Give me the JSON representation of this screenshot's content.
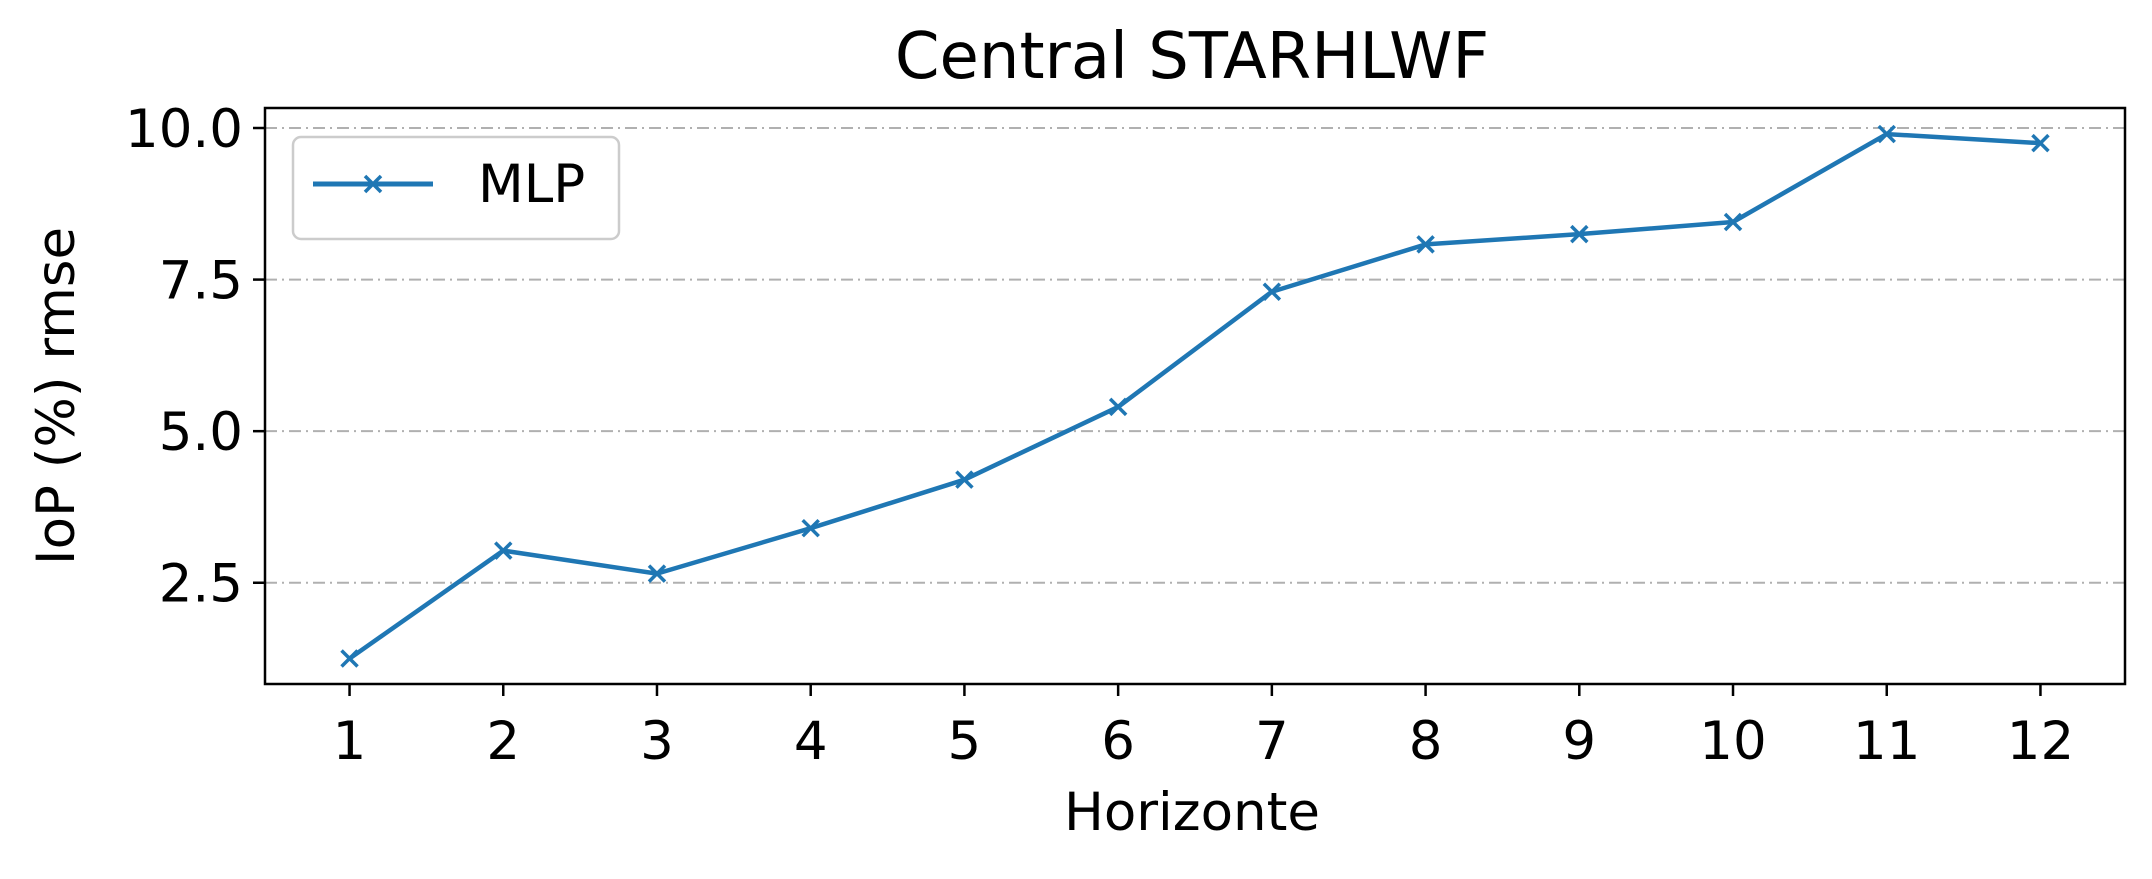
{
  "chart_data": {
    "type": "line",
    "title": "Central STARHLWF",
    "xlabel": "Horizonte",
    "ylabel": "IoP (%) rmse",
    "x": [
      1,
      2,
      3,
      4,
      5,
      6,
      7,
      8,
      9,
      10,
      11,
      12
    ],
    "x_tick_labels": [
      "1",
      "2",
      "3",
      "4",
      "5",
      "6",
      "7",
      "8",
      "9",
      "10",
      "11",
      "12"
    ],
    "xlim": [
      0.45,
      12.55
    ],
    "ylim": [
      0.83,
      10.33
    ],
    "y_ticks": [
      2.5,
      5.0,
      7.5,
      10.0
    ],
    "y_tick_labels": [
      "2.5",
      "5.0",
      "7.5",
      "10.0"
    ],
    "series": [
      {
        "name": "MLP",
        "color": "#1f77b4",
        "marker": "x",
        "values": [
          1.25,
          3.03,
          2.65,
          3.4,
          4.2,
          5.4,
          7.3,
          8.08,
          8.25,
          8.45,
          9.9,
          9.75
        ]
      }
    ],
    "grid": {
      "axis": "y",
      "style": "dash-dot",
      "color": "#b0b0b0"
    },
    "legend": {
      "position": "top-left"
    }
  }
}
